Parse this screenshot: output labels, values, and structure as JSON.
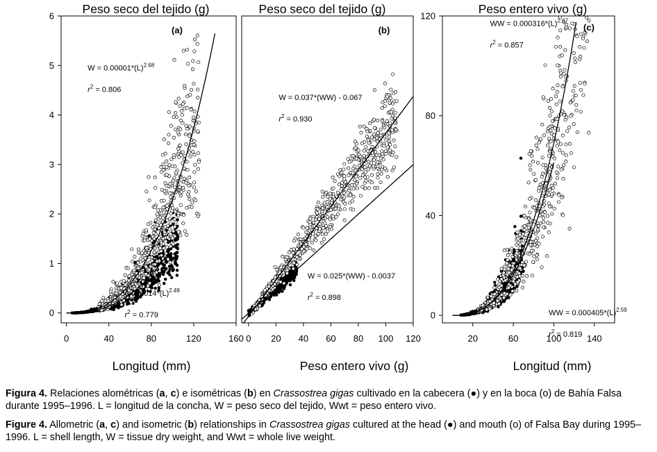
{
  "figure": {
    "caption_es": {
      "label": "Figura 4.",
      "t1": " Relaciones alométricas (",
      "a": "a",
      "t2": ", ",
      "c": "c",
      "t3": ") e isométricas (",
      "b": "b",
      "t4": ") en ",
      "species": "Crassostrea gigas",
      "t5": " cultivado en la cabecera (●) y en la boca (o) de Bahía Falsa durante 1995–1996. L = longitud de la concha, W = peso seco del tejido, Wwt = peso entero vivo."
    },
    "caption_en": {
      "label": "Figure 4.",
      "t1": " Allometric (",
      "a": "a",
      "t2": ", ",
      "c": "c",
      "t3": ") and isometric (",
      "b": "b",
      "t4": ") relationships in ",
      "species": "Crassostrea gigas",
      "t5": " cultured at the head (●) and mouth (o) of Falsa Bay during 1995–1996. L = shell length, W = tissue dry weight, and Wwt = whole live weight."
    }
  },
  "chart_data": [
    {
      "panel": "a",
      "type": "scatter",
      "title": "Peso seco del tejido (g)",
      "xlabel": "Longitud (mm)",
      "ylabel": "",
      "xlim": [
        -5,
        160
      ],
      "ylim": [
        -0.2,
        6
      ],
      "xticks": [
        "0",
        "40",
        "80",
        "120",
        "160"
      ],
      "xtick_values": [
        0,
        40,
        80,
        120,
        160
      ],
      "yticks": [
        "0",
        "1",
        "2",
        "3",
        "4",
        "5",
        "6"
      ],
      "ytick_values": [
        0,
        1,
        2,
        3,
        4,
        5,
        6
      ],
      "panel_label": "(a)",
      "annotations": [
        {
          "eq": "W = 0.00001*(L)",
          "exp": "2.68",
          "r2": "= 0.806",
          "x": 20,
          "y": 4.9
        },
        {
          "eq": "0.000014*(L)",
          "exp": "2.49",
          "r2": "= 0.779",
          "x": 55,
          "y": 0.35
        }
      ],
      "series": [
        {
          "name": "cabecera",
          "marker": "filled",
          "model": "power",
          "a": 1.4e-05,
          "b": 2.49,
          "x_range": [
            5,
            105
          ],
          "n": 650,
          "noise": 0.3
        },
        {
          "name": "boca",
          "marker": "open",
          "model": "power",
          "a": 1e-05,
          "b": 2.68,
          "x_range": [
            30,
            125
          ],
          "n": 700,
          "noise": 0.32
        }
      ],
      "fits": [
        {
          "a": 1e-05,
          "b": 2.68,
          "x": [
            0,
            140
          ],
          "model": "power"
        },
        {
          "a": 1.4e-05,
          "b": 2.49,
          "x": [
            0,
            100
          ],
          "model": "power"
        }
      ]
    },
    {
      "panel": "b",
      "type": "scatter",
      "title": "Peso seco del tejido (g)",
      "xlabel": "Peso entero vivo (g)",
      "ylabel": "",
      "xlim": [
        -5,
        120
      ],
      "ylim": [
        -0.2,
        6
      ],
      "xticks": [
        "0",
        "20",
        "40",
        "60",
        "80",
        "100",
        "120"
      ],
      "xtick_values": [
        0,
        20,
        40,
        60,
        80,
        100,
        120
      ],
      "yticks": [],
      "ytick_values": [],
      "panel_label": "(b)",
      "annotations": [
        {
          "eq": "W = 0.037*(WW) - 0.067",
          "exp": "",
          "r2": "= 0.930",
          "x": 22,
          "y": 4.3
        },
        {
          "eq": "W = 0.025*(WW) - 0.0037",
          "exp": "",
          "r2": "= 0.898",
          "x": 43,
          "y": 0.7
        }
      ],
      "series": [
        {
          "name": "cabecera",
          "marker": "filled",
          "model": "linear",
          "a": 0.025,
          "b": -0.0037,
          "x_range": [
            0,
            35
          ],
          "n": 550,
          "noise": 0.12
        },
        {
          "name": "boca",
          "marker": "open",
          "model": "linear",
          "a": 0.037,
          "b": -0.067,
          "x_range": [
            2,
            108
          ],
          "n": 650,
          "noise": 0.2
        }
      ],
      "fits": [
        {
          "a": 0.037,
          "b": -0.067,
          "x": [
            -5,
            120
          ],
          "model": "linear"
        },
        {
          "a": 0.025,
          "b": -0.0037,
          "x": [
            -5,
            120
          ],
          "model": "linear"
        }
      ]
    },
    {
      "panel": "c",
      "type": "scatter",
      "title": "Peso entero vivo (g)",
      "xlabel": "Longitud (mm)",
      "ylabel": "",
      "xlim": [
        -10,
        160
      ],
      "ylim": [
        -3,
        120
      ],
      "xticks": [
        "20",
        "60",
        "100",
        "140"
      ],
      "xtick_values": [
        20,
        60,
        100,
        140
      ],
      "yticks": [
        "0",
        "40",
        "80",
        "120"
      ],
      "ytick_values": [
        0,
        40,
        80,
        120
      ],
      "panel_label": "(c)",
      "annotations": [
        {
          "eq": "WW = 0.000316*(L)",
          "exp": "2.67",
          "r2": "= 0.857",
          "x": 37,
          "y": 116
        },
        {
          "eq": "WW = 0.000405*(L)",
          "exp": "2.59",
          "r2": "= 0.819",
          "x": 95,
          "y": 0
        }
      ],
      "series": [
        {
          "name": "cabecera",
          "marker": "filled",
          "model": "power",
          "a": 0.000405,
          "b": 2.59,
          "x_range": [
            8,
            70
          ],
          "n": 600,
          "noise": 0.28
        },
        {
          "name": "boca",
          "marker": "open",
          "model": "power",
          "a": 0.000316,
          "b": 2.67,
          "x_range": [
            25,
            135
          ],
          "n": 650,
          "noise": 0.3
        }
      ],
      "fits": [
        {
          "a": 0.000316,
          "b": 2.67,
          "x": [
            0,
            122
          ],
          "model": "power"
        },
        {
          "a": 0.000405,
          "b": 2.59,
          "x": [
            0,
            100
          ],
          "model": "power"
        }
      ]
    }
  ]
}
